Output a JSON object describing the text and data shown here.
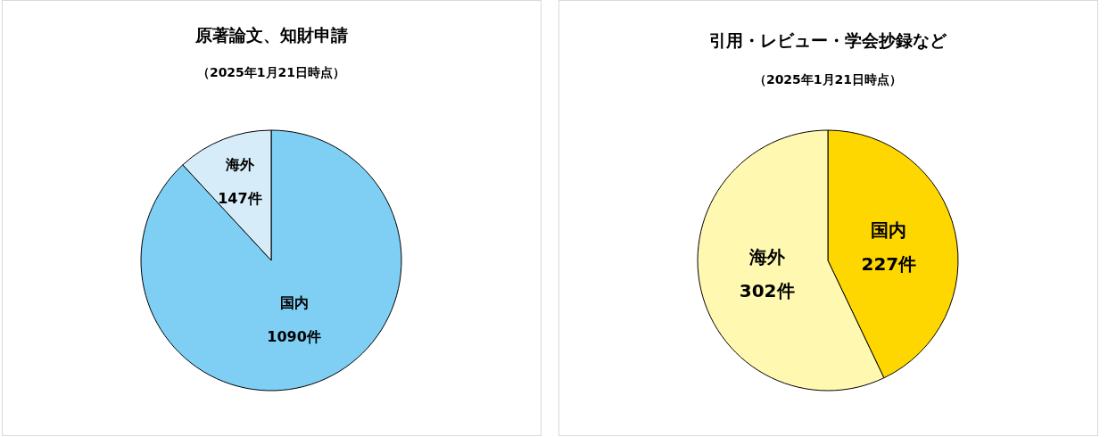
{
  "chart_data": [
    {
      "type": "pie",
      "title": "原著論文、知財申請",
      "subtitle": "（2025年1月21日時点）",
      "categories": [
        "国内",
        "海外"
      ],
      "values": [
        1090,
        147
      ],
      "colors": [
        "#7fcff5",
        "#d6ecf8"
      ],
      "value_labels": [
        "1090件",
        "147件"
      ]
    },
    {
      "type": "pie",
      "title": "引用・レビュー・学会抄録など",
      "subtitle": "（2025年1月21日時点）",
      "categories": [
        "国内",
        "海外"
      ],
      "values": [
        227,
        302
      ],
      "colors": [
        "#ffd700",
        "#fff8b0"
      ],
      "value_labels": [
        "227件",
        "302件"
      ]
    }
  ]
}
